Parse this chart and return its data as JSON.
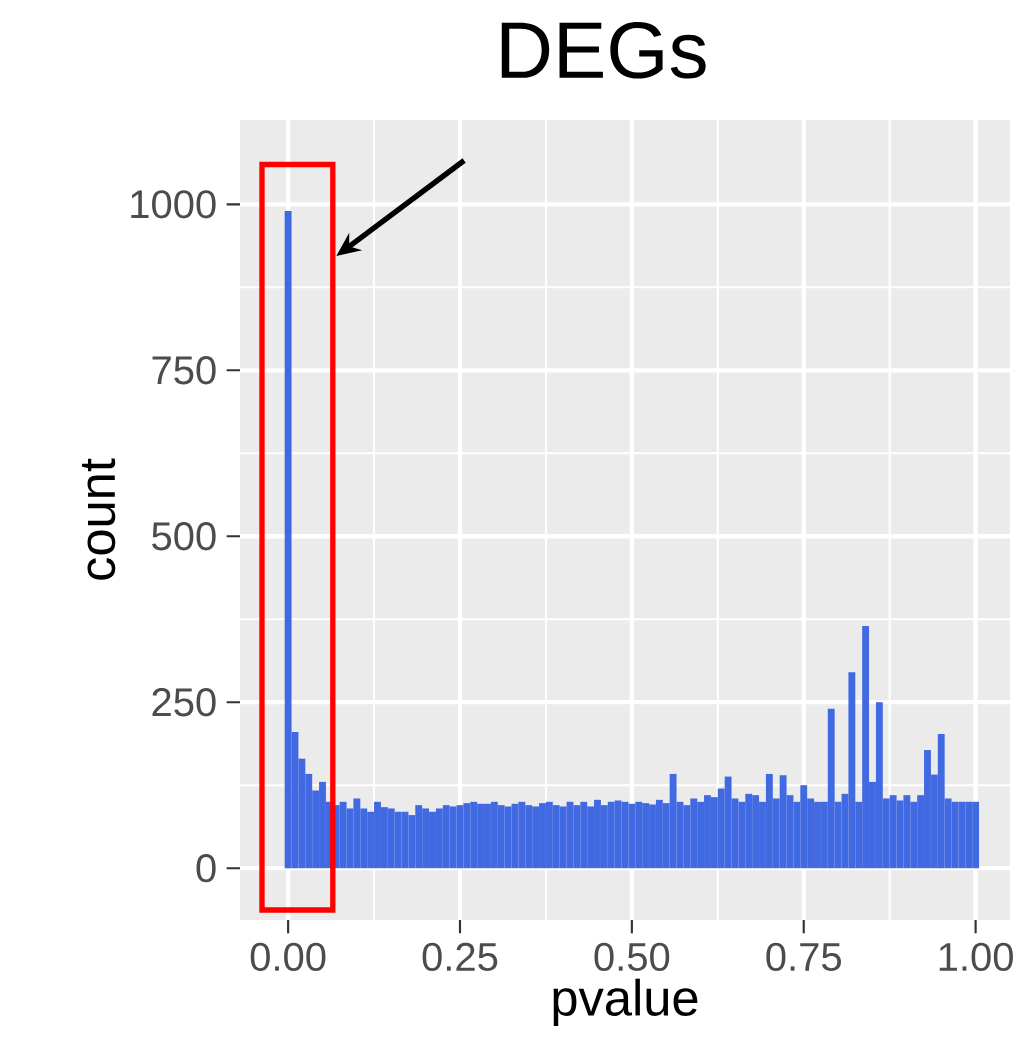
{
  "chart_data": {
    "type": "histogram",
    "title": "DEGs",
    "xlabel": "pvalue",
    "ylabel": "count",
    "color": "#4169e1",
    "bins": [
      -0.005,
      0.005,
      0.015,
      0.025,
      0.035,
      0.045,
      0.055,
      0.065,
      0.075,
      0.085,
      0.095,
      0.105,
      0.115,
      0.125,
      0.135,
      0.145,
      0.155,
      0.165,
      0.175,
      0.185,
      0.195,
      0.205,
      0.215,
      0.225,
      0.235,
      0.245,
      0.255,
      0.265,
      0.275,
      0.285,
      0.295,
      0.305,
      0.315,
      0.325,
      0.335,
      0.345,
      0.355,
      0.365,
      0.375,
      0.385,
      0.395,
      0.405,
      0.415,
      0.425,
      0.435,
      0.445,
      0.455,
      0.465,
      0.475,
      0.485,
      0.495,
      0.505,
      0.515,
      0.525,
      0.535,
      0.545,
      0.555,
      0.565,
      0.575,
      0.585,
      0.595,
      0.605,
      0.615,
      0.625,
      0.635,
      0.645,
      0.655,
      0.665,
      0.675,
      0.685,
      0.695,
      0.705,
      0.715,
      0.725,
      0.735,
      0.745,
      0.755,
      0.765,
      0.775,
      0.785,
      0.795,
      0.805,
      0.815,
      0.825,
      0.835,
      0.845,
      0.855,
      0.865,
      0.875,
      0.885,
      0.895,
      0.905,
      0.915,
      0.925,
      0.935,
      0.945,
      0.955,
      0.965,
      0.975,
      0.985,
      0.995,
      1.005
    ],
    "values": [
      990,
      205,
      165,
      142,
      117,
      130,
      100,
      95,
      100,
      90,
      105,
      90,
      85,
      100,
      92,
      90,
      85,
      85,
      80,
      95,
      90,
      85,
      90,
      95,
      93,
      95,
      98,
      100,
      97,
      97,
      100,
      95,
      93,
      97,
      100,
      95,
      93,
      98,
      100,
      95,
      93,
      100,
      95,
      100,
      93,
      103,
      95,
      100,
      102,
      100,
      97,
      100,
      98,
      96,
      103,
      98,
      142,
      100,
      95,
      105,
      100,
      110,
      107,
      120,
      138,
      105,
      100,
      112,
      110,
      100,
      142,
      105,
      140,
      110,
      100,
      125,
      105,
      100,
      100,
      240,
      100,
      112,
      295,
      100,
      365,
      130,
      250,
      105,
      110,
      102,
      110,
      100,
      110,
      178,
      141,
      202,
      105,
      100,
      100,
      100,
      100
    ],
    "xlim": [
      -0.07,
      1.05
    ],
    "ylim": [
      -78,
      1127
    ],
    "xticks": [
      {
        "value": 0,
        "label": "0.00"
      },
      {
        "value": 0.25,
        "label": "0.25"
      },
      {
        "value": 0.5,
        "label": "0.50"
      },
      {
        "value": 0.75,
        "label": "0.75"
      },
      {
        "value": 1,
        "label": "1.00"
      }
    ],
    "yticks": [
      0,
      250,
      500,
      750,
      1000
    ],
    "grid": true
  }
}
